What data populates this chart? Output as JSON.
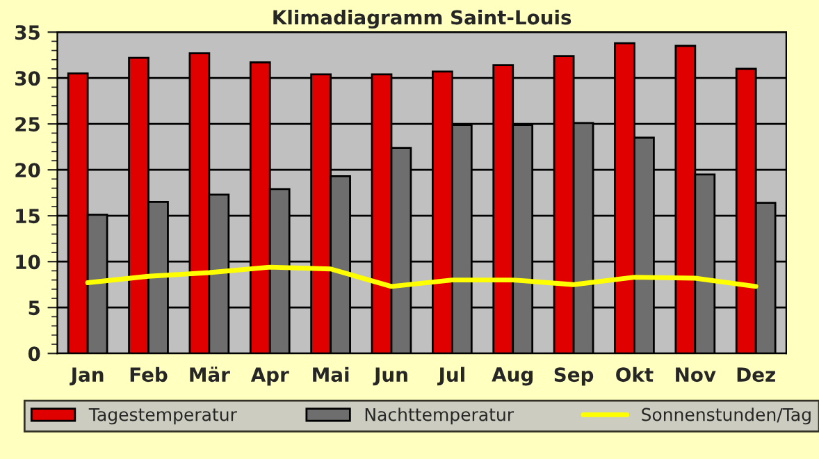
{
  "chart_data": {
    "type": "bar",
    "title": "Klimadiagramm Saint-Louis",
    "categories": [
      "Jan",
      "Feb",
      "Mär",
      "Apr",
      "Mai",
      "Jun",
      "Jul",
      "Aug",
      "Sep",
      "Okt",
      "Nov",
      "Dez"
    ],
    "series": [
      {
        "name": "Tagestemperatur",
        "color": "#e00000",
        "values": [
          30.5,
          32.2,
          32.7,
          31.7,
          30.4,
          30.4,
          30.7,
          31.4,
          32.4,
          33.8,
          33.5,
          31.0
        ]
      },
      {
        "name": "Nachttemperatur",
        "color": "#6e6e6e",
        "values": [
          15.1,
          16.5,
          17.3,
          17.9,
          19.3,
          22.4,
          24.9,
          24.9,
          25.1,
          23.5,
          19.5,
          16.4
        ]
      },
      {
        "name": "Sonnenstunden/Tag",
        "type": "line",
        "color": "#ffff00",
        "values": [
          7.7,
          8.4,
          8.8,
          9.4,
          9.2,
          7.3,
          8.0,
          8.0,
          7.5,
          8.3,
          8.2,
          7.3
        ]
      }
    ],
    "ylim": [
      0,
      35
    ],
    "yticks": [
      0,
      5,
      10,
      15,
      20,
      25,
      30,
      35
    ],
    "grid": "y",
    "legend": "bottom"
  }
}
